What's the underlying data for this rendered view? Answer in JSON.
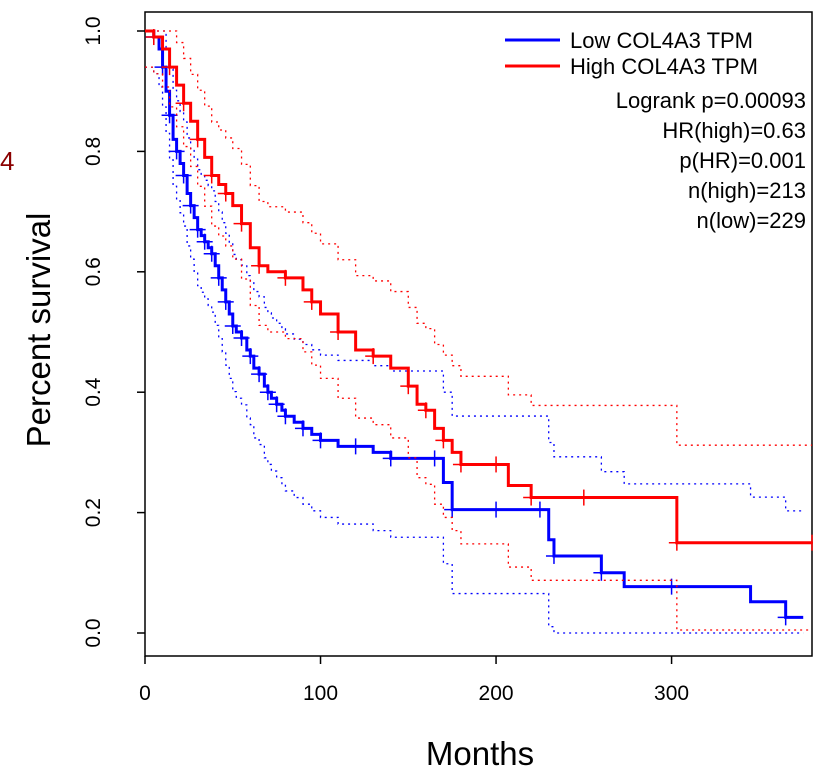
{
  "side_label": "4",
  "chart_data": {
    "type": "line",
    "xlabel": "Months",
    "ylabel": "Percent survival",
    "xlim": [
      0,
      380
    ],
    "ylim": [
      0,
      1
    ],
    "xticks": [
      0,
      100,
      200,
      300
    ],
    "yticks": [
      0.0,
      0.2,
      0.4,
      0.6,
      0.8,
      1.0
    ],
    "ytick_labels": [
      "0.0",
      "0.2",
      "0.4",
      "0.6",
      "0.8",
      "1.0"
    ],
    "grid": false,
    "legend_position": "top-right",
    "legend": [
      "Low COL4A3 TPM",
      "High COL4A3 TPM"
    ],
    "annotations": [
      "Logrank p=0.00093",
      "HR(high)=0.63",
      "p(HR)=0.001",
      "n(high)=213",
      "n(low)=229"
    ],
    "series": [
      {
        "name": "Low COL4A3 TPM",
        "color": "#0000ff",
        "x": [
          0,
          5,
          8,
          10,
          12,
          14,
          16,
          18,
          20,
          22,
          24,
          26,
          28,
          30,
          32,
          34,
          36,
          38,
          40,
          42,
          44,
          46,
          48,
          50,
          52,
          55,
          58,
          60,
          62,
          65,
          68,
          70,
          72,
          75,
          78,
          80,
          85,
          90,
          95,
          100,
          110,
          120,
          130,
          140,
          150,
          165,
          170,
          175,
          190,
          200,
          210,
          225,
          230,
          233,
          250,
          260,
          273,
          300,
          345,
          365,
          375
        ],
        "y": [
          1.0,
          0.99,
          0.97,
          0.94,
          0.9,
          0.86,
          0.82,
          0.8,
          0.78,
          0.76,
          0.73,
          0.71,
          0.69,
          0.67,
          0.66,
          0.65,
          0.64,
          0.63,
          0.61,
          0.59,
          0.57,
          0.55,
          0.53,
          0.51,
          0.5,
          0.49,
          0.47,
          0.46,
          0.44,
          0.43,
          0.41,
          0.4,
          0.39,
          0.38,
          0.37,
          0.36,
          0.35,
          0.34,
          0.33,
          0.32,
          0.31,
          0.31,
          0.3,
          0.29,
          0.29,
          0.29,
          0.25,
          0.205,
          0.205,
          0.205,
          0.205,
          0.205,
          0.155,
          0.128,
          0.128,
          0.1,
          0.077,
          0.077,
          0.052,
          0.026,
          0.026
        ]
      },
      {
        "name": "High COL4A3 TPM",
        "color": "#ff0000",
        "x": [
          0,
          5,
          10,
          14,
          18,
          22,
          26,
          30,
          34,
          38,
          42,
          46,
          50,
          55,
          60,
          65,
          70,
          80,
          90,
          95,
          100,
          110,
          120,
          130,
          140,
          150,
          155,
          160,
          165,
          170,
          175,
          180,
          190,
          200,
          207,
          220,
          230,
          250,
          280,
          303,
          330,
          380
        ],
        "y": [
          1.0,
          0.99,
          0.97,
          0.94,
          0.91,
          0.88,
          0.85,
          0.82,
          0.79,
          0.76,
          0.745,
          0.73,
          0.71,
          0.68,
          0.64,
          0.61,
          0.6,
          0.59,
          0.57,
          0.55,
          0.53,
          0.5,
          0.47,
          0.46,
          0.44,
          0.41,
          0.38,
          0.37,
          0.34,
          0.32,
          0.3,
          0.28,
          0.28,
          0.28,
          0.245,
          0.225,
          0.225,
          0.225,
          0.225,
          0.15,
          0.15,
          0.15
        ]
      }
    ]
  }
}
